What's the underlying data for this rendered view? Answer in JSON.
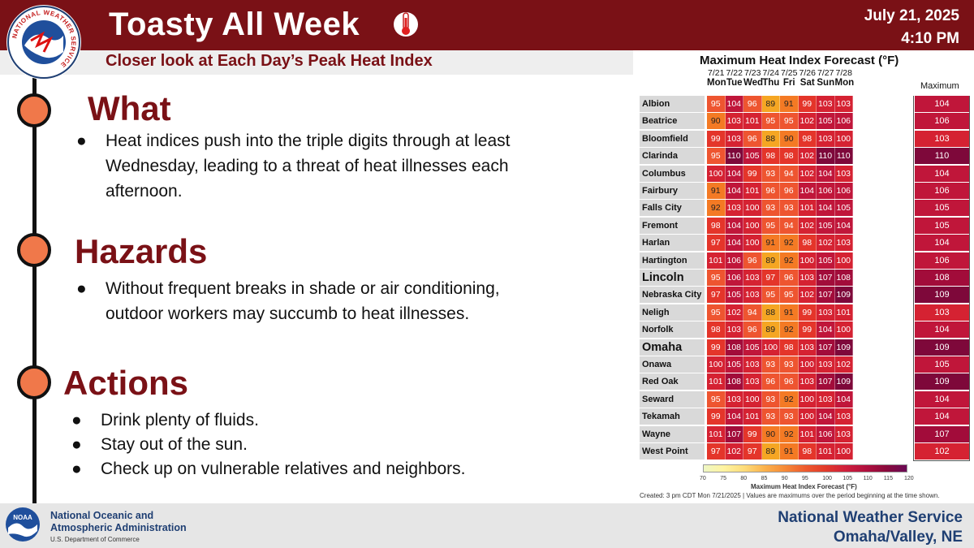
{
  "header": {
    "title": "Toasty All Week",
    "date": "July 21, 2025",
    "time": "4:10 PM",
    "subtitle": "Closer look at Each Day’s Peak Heat Index",
    "logo_text": "NATIONAL WEATHER SERVICE",
    "thermometer_icon": "thermometer-icon"
  },
  "sections": [
    {
      "heading": "What",
      "bullets": [
        "Heat indices push into the triple digits through at least Wednesday, leading to a threat of heat illnesses each afternoon."
      ]
    },
    {
      "heading": "Hazards",
      "bullets": [
        "Without frequent breaks in shade or air conditioning, outdoor workers may succumb to heat illnesses."
      ]
    },
    {
      "heading": "Actions",
      "bullets": [
        "Drink plenty of fluids.",
        "Stay out of the sun.",
        "Check up on vulnerable relatives and neighbors."
      ]
    }
  ],
  "bullet_char": "●",
  "table": {
    "title": "Maximum Heat Index Forecast (°F)",
    "max_label": "Maximum",
    "days": [
      {
        "date": "7/21",
        "day": "Mon"
      },
      {
        "date": "7/22",
        "day": "Tue"
      },
      {
        "date": "7/23",
        "day": "Wed"
      },
      {
        "date": "7/24",
        "day": "Thu"
      },
      {
        "date": "7/25",
        "day": "Fri"
      },
      {
        "date": "7/26",
        "day": "Sat"
      },
      {
        "date": "7/27",
        "day": "Sun"
      },
      {
        "date": "7/28",
        "day": "Mon"
      }
    ],
    "rows": [
      {
        "city": "Albion",
        "values": [
          95,
          104,
          96,
          89,
          91,
          99,
          103,
          103
        ],
        "max": 104,
        "big": false
      },
      {
        "city": "Beatrice",
        "values": [
          90,
          103,
          101,
          95,
          95,
          102,
          105,
          106
        ],
        "max": 106,
        "big": false
      },
      {
        "city": "Bloomfield",
        "values": [
          99,
          103,
          96,
          88,
          90,
          98,
          103,
          100
        ],
        "max": 103,
        "big": false
      },
      {
        "city": "Clarinda",
        "values": [
          95,
          110,
          105,
          98,
          98,
          102,
          110,
          110
        ],
        "max": 110,
        "big": false
      },
      {
        "city": "Columbus",
        "values": [
          100,
          104,
          99,
          93,
          94,
          102,
          104,
          103
        ],
        "max": 104,
        "big": false
      },
      {
        "city": "Fairbury",
        "values": [
          91,
          104,
          101,
          96,
          96,
          104,
          106,
          106
        ],
        "max": 106,
        "big": false
      },
      {
        "city": "Falls City",
        "values": [
          92,
          103,
          100,
          93,
          93,
          101,
          104,
          105
        ],
        "max": 105,
        "big": false
      },
      {
        "city": "Fremont",
        "values": [
          98,
          104,
          100,
          95,
          94,
          102,
          105,
          104
        ],
        "max": 105,
        "big": false
      },
      {
        "city": "Harlan",
        "values": [
          97,
          104,
          100,
          91,
          92,
          98,
          102,
          103
        ],
        "max": 104,
        "big": false
      },
      {
        "city": "Hartington",
        "values": [
          101,
          106,
          96,
          89,
          92,
          100,
          105,
          100
        ],
        "max": 106,
        "big": false
      },
      {
        "city": "Lincoln",
        "values": [
          95,
          106,
          103,
          97,
          96,
          103,
          107,
          108
        ],
        "max": 108,
        "big": true
      },
      {
        "city": "Nebraska City",
        "values": [
          97,
          105,
          103,
          95,
          95,
          102,
          107,
          109
        ],
        "max": 109,
        "big": false
      },
      {
        "city": "Neligh",
        "values": [
          95,
          102,
          94,
          88,
          91,
          99,
          103,
          101
        ],
        "max": 103,
        "big": false
      },
      {
        "city": "Norfolk",
        "values": [
          98,
          103,
          96,
          89,
          92,
          99,
          104,
          100
        ],
        "max": 104,
        "big": false
      },
      {
        "city": "Omaha",
        "values": [
          99,
          108,
          105,
          100,
          98,
          103,
          107,
          109
        ],
        "max": 109,
        "big": true
      },
      {
        "city": "Onawa",
        "values": [
          100,
          105,
          103,
          93,
          93,
          100,
          103,
          102
        ],
        "max": 105,
        "big": false
      },
      {
        "city": "Red Oak",
        "values": [
          101,
          108,
          103,
          96,
          96,
          103,
          107,
          109
        ],
        "max": 109,
        "big": false
      },
      {
        "city": "Seward",
        "values": [
          95,
          103,
          100,
          93,
          92,
          100,
          103,
          104
        ],
        "max": 104,
        "big": false
      },
      {
        "city": "Tekamah",
        "values": [
          99,
          104,
          101,
          93,
          93,
          100,
          104,
          103
        ],
        "max": 104,
        "big": false
      },
      {
        "city": "Wayne",
        "values": [
          101,
          107,
          99,
          90,
          92,
          101,
          106,
          103
        ],
        "max": 107,
        "big": false
      },
      {
        "city": "West Point",
        "values": [
          97,
          102,
          97,
          89,
          91,
          98,
          101,
          100
        ],
        "max": 102,
        "big": false
      }
    ],
    "legend": {
      "ticks": [
        "70",
        "75",
        "80",
        "85",
        "90",
        "95",
        "100",
        "105",
        "110",
        "115",
        "120"
      ],
      "label": "Maximum Heat Index Forecast (°F)",
      "colors": [
        "#eef7c4",
        "#fff3a0",
        "#fddc7a",
        "#fbb24c",
        "#f68a38",
        "#ee5b2e",
        "#e23a2a",
        "#cf1f3c",
        "#b0103e",
        "#8a0a3c",
        "#6a0a55"
      ]
    },
    "created": "Created: 3 pm CDT Mon 7/21/2025  |  Values are maximums over the period beginning at the time shown."
  },
  "footer": {
    "noaa_line1": "National Oceanic and",
    "noaa_line2": "Atmospheric Administration",
    "noaa_dept": "U.S. Department of Commerce",
    "nws_line1": "National Weather Service",
    "nws_line2": "Omaha/Valley, NE",
    "noaa_logo_text": "NOAA"
  },
  "colors": {
    "brand_red": "#7a1116",
    "node_orange": "#f0784a",
    "noaa_blue": "#1f3f73"
  }
}
